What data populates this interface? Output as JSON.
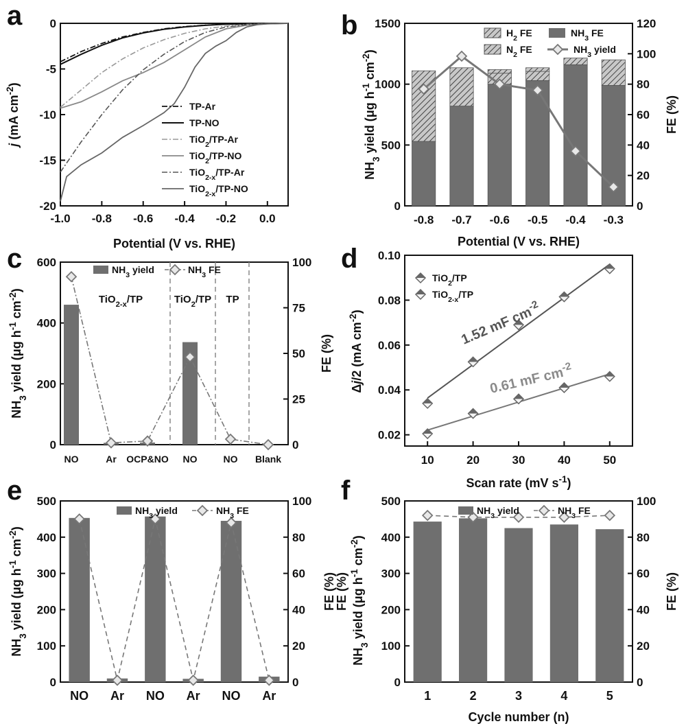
{
  "colors": {
    "bar": "#6f6f6f",
    "bar_dark": "#555555",
    "line": "#7a7a7a",
    "axis": "#111111",
    "light": "#9a9a9a"
  },
  "chart_data": [
    {
      "panel": "a",
      "type": "line",
      "xlabel": "Potential (V vs. RHE)",
      "ylabel": "j (mA cm-2)",
      "xlim": [
        -1.0,
        0.1
      ],
      "ylim": [
        -20,
        0
      ],
      "xticks": [
        "-1.0",
        "-0.8",
        "-0.6",
        "-0.4",
        "-0.2",
        "0.0"
      ],
      "yticks": [
        "0",
        "-5",
        "-10",
        "-15",
        "-20"
      ],
      "series": [
        {
          "name": "TP-Ar",
          "x": [
            -1.0,
            -0.9,
            -0.8,
            -0.7,
            -0.6,
            -0.5,
            -0.4,
            -0.3,
            -0.2,
            -0.1,
            0.0,
            0.1
          ],
          "y": [
            -4.2,
            -3.1,
            -2.2,
            -1.5,
            -1.0,
            -0.6,
            -0.35,
            -0.2,
            -0.1,
            -0.05,
            -0.02,
            0
          ]
        },
        {
          "name": "TP-NO",
          "x": [
            -1.0,
            -0.9,
            -0.8,
            -0.7,
            -0.6,
            -0.5,
            -0.4,
            -0.3,
            -0.2,
            -0.1,
            0.0,
            0.1
          ],
          "y": [
            -4.5,
            -3.4,
            -2.4,
            -1.6,
            -1.05,
            -0.65,
            -0.4,
            -0.22,
            -0.1,
            -0.05,
            -0.02,
            0
          ]
        },
        {
          "name": "TiO2/TP-Ar",
          "x": [
            -1.0,
            -0.9,
            -0.8,
            -0.7,
            -0.6,
            -0.5,
            -0.4,
            -0.3,
            -0.2,
            -0.1,
            0.0,
            0.1
          ],
          "y": [
            -9.2,
            -7.3,
            -5.4,
            -3.9,
            -2.7,
            -1.8,
            -1.1,
            -0.6,
            -0.3,
            -0.12,
            -0.04,
            0
          ]
        },
        {
          "name": "TiO2/TP-NO",
          "x": [
            -1.0,
            -0.9,
            -0.8,
            -0.7,
            -0.6,
            -0.5,
            -0.4,
            -0.3,
            -0.2,
            -0.1,
            0.0,
            0.1
          ],
          "y": [
            -9.3,
            -8.6,
            -7.5,
            -6.3,
            -5.4,
            -4.3,
            -2.9,
            -1.5,
            -0.6,
            -0.2,
            -0.05,
            0
          ]
        },
        {
          "name": "TiO2-x/TP-Ar",
          "x": [
            -1.0,
            -0.9,
            -0.8,
            -0.7,
            -0.6,
            -0.5,
            -0.4,
            -0.3,
            -0.2,
            -0.1,
            0.0,
            0.1
          ],
          "y": [
            -16.3,
            -13.0,
            -10.0,
            -7.3,
            -5.1,
            -3.4,
            -2.0,
            -1.0,
            -0.4,
            -0.15,
            -0.04,
            0
          ]
        },
        {
          "name": "TiO2-x/TP-NO",
          "x": [
            -1.0,
            -0.97,
            -0.9,
            -0.8,
            -0.7,
            -0.6,
            -0.5,
            -0.45,
            -0.4,
            -0.35,
            -0.3,
            -0.25,
            -0.2,
            -0.15,
            -0.1,
            -0.05,
            0.0,
            0.1
          ],
          "y": [
            -19.5,
            -16.8,
            -15.5,
            -14.2,
            -12.5,
            -11.2,
            -9.8,
            -8.8,
            -7.0,
            -4.8,
            -3.3,
            -2.5,
            -1.9,
            -1.0,
            -0.4,
            -0.15,
            -0.05,
            0
          ]
        }
      ],
      "legend": [
        "TP-Ar",
        "TP-NO",
        "TiO2/TP-Ar",
        "TiO2/TP-NO",
        "TiO2-x/TP-Ar",
        "TiO2-x/TP-NO"
      ]
    },
    {
      "panel": "b",
      "type": "bar",
      "xlabel": "Potential (V vs. RHE)",
      "ylabel": "NH3 yield (μg h-1 cm-2)",
      "y2label": "FE (%)",
      "categories": [
        "-0.8",
        "-0.7",
        "-0.6",
        "-0.5",
        "-0.4",
        "-0.3"
      ],
      "ylim": [
        0,
        1500
      ],
      "yticks": [
        "0",
        "500",
        "1000",
        "1500"
      ],
      "y2lim": [
        0,
        120
      ],
      "y2ticks": [
        "0",
        "20",
        "40",
        "60",
        "80",
        "100",
        "120"
      ],
      "nh3_fe_yield_units": [
        530,
        820,
        1000,
        1030,
        1160,
        990
      ],
      "n2_fe_yield_units": [
        580,
        315,
        90,
        75,
        55,
        210
      ],
      "h2_fe_yield_units": [
        0,
        0,
        30,
        30,
        0,
        0
      ],
      "nh3_yield": [
        960,
        1230,
        1000,
        950,
        450,
        155
      ],
      "legend": [
        "H2 FE",
        "NH3 FE",
        "N2 FE",
        "NH3 yield"
      ]
    },
    {
      "panel": "c",
      "type": "bar",
      "ylabel": "NH3 yield (μg h-1 cm-2)",
      "y2label": "FE (%)",
      "categories": [
        "NO",
        "Ar",
        "OCP&NO",
        "NO",
        "NO",
        "Blank"
      ],
      "regions": [
        "TiO2-x/TP",
        "TiO2/TP",
        "TP"
      ],
      "ylim": [
        0,
        600
      ],
      "yticks": [
        "0",
        "200",
        "400",
        "600"
      ],
      "y2lim": [
        0,
        100
      ],
      "y2ticks": [
        "0",
        "25",
        "50",
        "75",
        "100"
      ],
      "nh3_yield": [
        460,
        6,
        7,
        337,
        0,
        0
      ],
      "nh3_fe": [
        92,
        1,
        2,
        48,
        3,
        0
      ],
      "legend": [
        "NH3 yield",
        "NH3 FE"
      ]
    },
    {
      "panel": "d",
      "type": "scatter",
      "xlabel": "Scan rate (mV s-1)",
      "ylabel": "Δj/2 (mA cm-2)",
      "xlim": [
        5,
        55
      ],
      "ylim": [
        0.015,
        0.1
      ],
      "xticks": [
        "10",
        "20",
        "30",
        "40",
        "50"
      ],
      "yticks": [
        "0.02",
        "0.04",
        "0.06",
        "0.08",
        "0.10"
      ],
      "series": [
        {
          "name": "TiO2/TP",
          "x": [
            10,
            20,
            30,
            40,
            50
          ],
          "y": [
            0.0205,
            0.0295,
            0.036,
            0.041,
            0.046
          ],
          "fit": "0.61 mF cm-2"
        },
        {
          "name": "TiO2-x/TP",
          "x": [
            10,
            20,
            30,
            40,
            50
          ],
          "y": [
            0.034,
            0.0525,
            0.069,
            0.0815,
            0.094
          ],
          "fit": "1.52 mF cm-2"
        }
      ],
      "annotations": [
        "1.52 mF cm-2",
        "0.61 mF cm-2"
      ]
    },
    {
      "panel": "e",
      "type": "bar",
      "ylabel": "NH3 yield (μg h-1 cm-2)",
      "y2label": "FE (%)",
      "categories": [
        "NO",
        "Ar",
        "NO",
        "Ar",
        "NO",
        "Ar"
      ],
      "ylim": [
        0,
        500
      ],
      "yticks": [
        "0",
        "100",
        "200",
        "300",
        "400",
        "500"
      ],
      "y2lim": [
        0,
        100
      ],
      "y2ticks": [
        "0",
        "20",
        "40",
        "60",
        "80",
        "100"
      ],
      "nh3_yield": [
        453,
        10,
        457,
        9,
        445,
        15
      ],
      "nh3_fe": [
        90,
        1,
        90,
        1,
        88,
        1
      ],
      "legend": [
        "NH3 yield",
        "NH3 FE"
      ]
    },
    {
      "panel": "f",
      "type": "bar",
      "xlabel": "Cycle number (n)",
      "ylabel": "NH3 yield (μg h-1 cm-2)",
      "y2label": "FE (%)",
      "categories": [
        "1",
        "2",
        "3",
        "4",
        "5"
      ],
      "ylim": [
        0,
        500
      ],
      "yticks": [
        "0",
        "100",
        "200",
        "300",
        "400",
        "500"
      ],
      "y2lim": [
        0,
        100
      ],
      "y2ticks": [
        "0",
        "20",
        "40",
        "60",
        "80",
        "100"
      ],
      "nh3_yield": [
        443,
        452,
        425,
        435,
        422
      ],
      "nh3_fe": [
        92,
        91,
        91,
        91,
        92
      ],
      "legend": [
        "NH3 yield",
        "NH3 FE"
      ]
    }
  ],
  "labels": {
    "panel_a": "a",
    "panel_b": "b",
    "panel_c": "c",
    "panel_d": "d",
    "panel_e": "e",
    "panel_f": "f",
    "fe_pct": "FE (%)",
    "fe_pct_left_f": "FE (%)"
  }
}
